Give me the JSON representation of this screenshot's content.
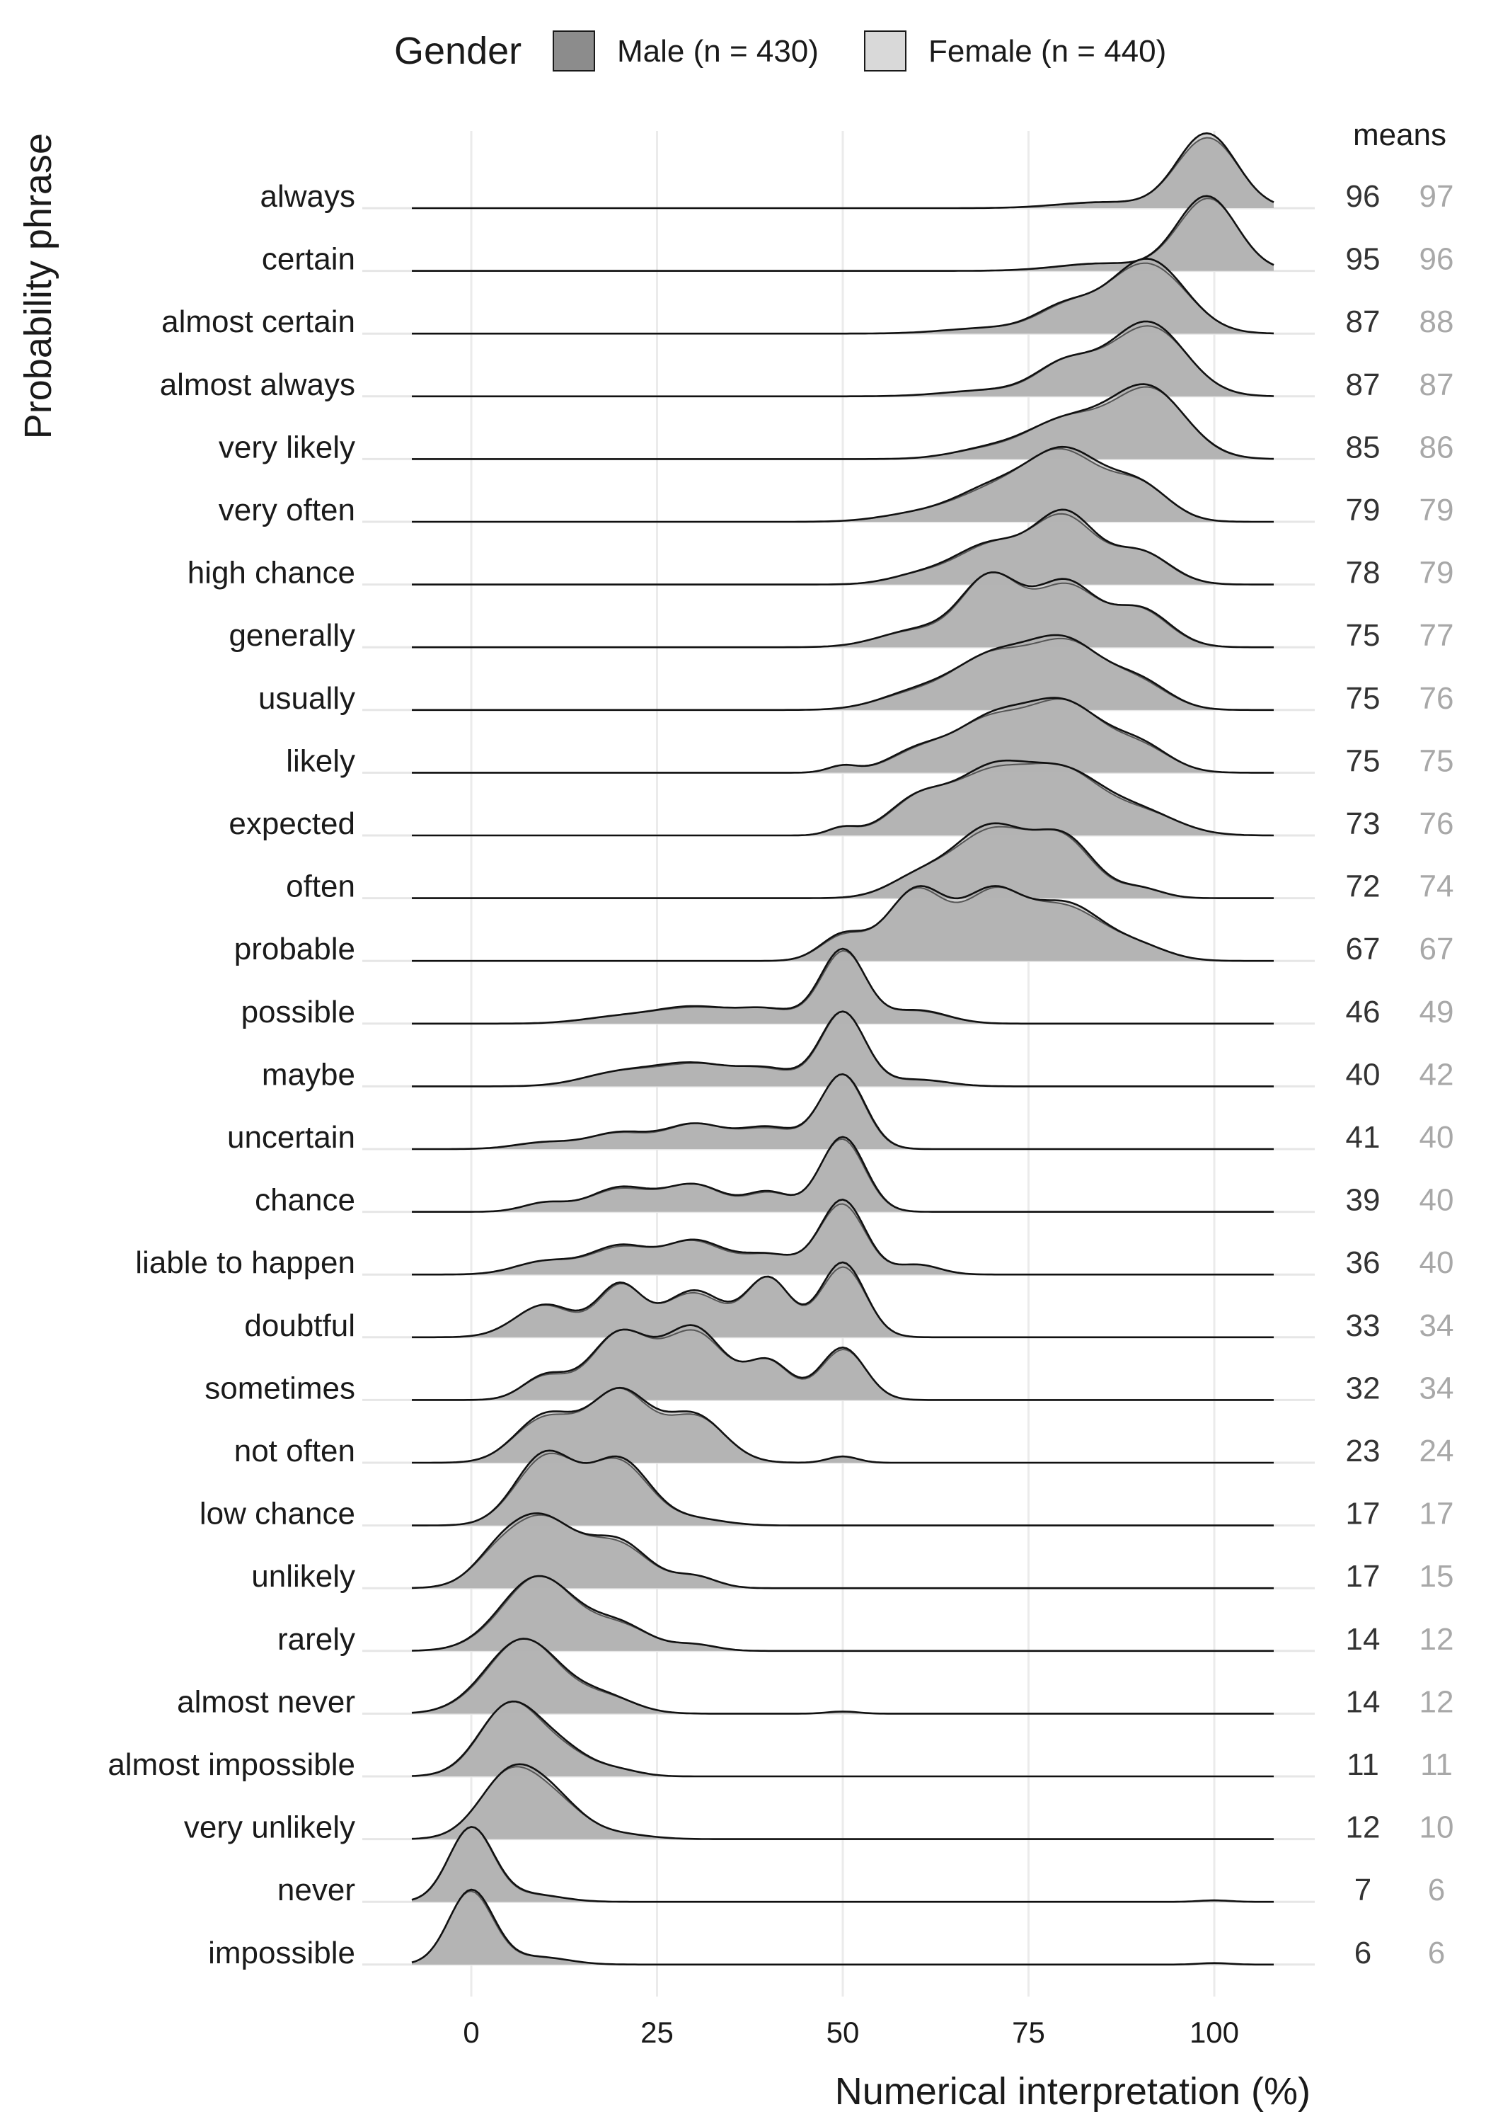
{
  "chart_data": {
    "type": "ridgeline-density",
    "xlabel": "Numerical interpretation (%)",
    "ylabel": "Probability phrase",
    "xlim": [
      -8,
      108
    ],
    "x_ticks": [
      "0",
      "25",
      "50",
      "75",
      "100"
    ],
    "x_tick_values": [
      0,
      25,
      50,
      75,
      100
    ],
    "legend": {
      "title": "Gender",
      "placement": "top",
      "entries": [
        {
          "name": "Male (n = 430)",
          "color": "#8c8c8c"
        },
        {
          "name": "Female (n = 440)",
          "color": "#d9d9d9"
        }
      ]
    },
    "means_header": "means",
    "overlap_fill": "#b3b3b3",
    "phrases": [
      {
        "name": "always",
        "mean_male": "96",
        "mean_female": "97",
        "peaks": [
          [
            99,
            4,
            1.0
          ],
          [
            85,
            6,
            0.08
          ]
        ]
      },
      {
        "name": "certain",
        "mean_male": "95",
        "mean_female": "96",
        "peaks": [
          [
            99,
            4,
            1.0
          ],
          [
            85,
            6,
            0.1
          ]
        ]
      },
      {
        "name": "almost certain",
        "mean_male": "87",
        "mean_female": "88",
        "peaks": [
          [
            91,
            5,
            0.65
          ],
          [
            80,
            4,
            0.22
          ],
          [
            70,
            6,
            0.05
          ]
        ]
      },
      {
        "name": "almost always",
        "mean_male": "87",
        "mean_female": "87",
        "peaks": [
          [
            91,
            5,
            0.6
          ],
          [
            80,
            4,
            0.25
          ],
          [
            70,
            6,
            0.05
          ]
        ]
      },
      {
        "name": "very likely",
        "mean_male": "85",
        "mean_female": "86",
        "peaks": [
          [
            91,
            5,
            0.55
          ],
          [
            80,
            5,
            0.28
          ],
          [
            70,
            5,
            0.08
          ]
        ]
      },
      {
        "name": "very often",
        "mean_male": "79",
        "mean_female": "79",
        "peaks": [
          [
            80,
            5,
            0.45
          ],
          [
            90,
            4,
            0.22
          ],
          [
            70,
            5,
            0.2
          ],
          [
            60,
            5,
            0.05
          ]
        ]
      },
      {
        "name": "high chance",
        "mean_male": "78",
        "mean_female": "79",
        "peaks": [
          [
            80,
            4,
            0.42
          ],
          [
            90,
            4,
            0.2
          ],
          [
            70,
            5,
            0.25
          ],
          [
            60,
            4,
            0.05
          ]
        ]
      },
      {
        "name": "generally",
        "mean_male": "75",
        "mean_female": "77",
        "peaks": [
          [
            70,
            4,
            0.33
          ],
          [
            80,
            4,
            0.3
          ],
          [
            90,
            4,
            0.18
          ],
          [
            60,
            5,
            0.08
          ]
        ]
      },
      {
        "name": "usually",
        "mean_male": "75",
        "mean_female": "76",
        "peaks": [
          [
            80,
            5,
            0.38
          ],
          [
            70,
            5,
            0.28
          ],
          [
            90,
            4,
            0.15
          ],
          [
            60,
            5,
            0.1
          ]
        ]
      },
      {
        "name": "likely",
        "mean_male": "75",
        "mean_female": "75",
        "peaks": [
          [
            80,
            5,
            0.38
          ],
          [
            70,
            5,
            0.3
          ],
          [
            60,
            4,
            0.12
          ],
          [
            90,
            4,
            0.15
          ],
          [
            50,
            2,
            0.04
          ]
        ]
      },
      {
        "name": "expected",
        "mean_male": "73",
        "mean_female": "76",
        "peaks": [
          [
            70,
            5,
            0.33
          ],
          [
            80,
            5,
            0.3
          ],
          [
            60,
            4,
            0.18
          ],
          [
            90,
            5,
            0.12
          ],
          [
            50,
            2,
            0.04
          ]
        ]
      },
      {
        "name": "often",
        "mean_male": "72",
        "mean_female": "74",
        "peaks": [
          [
            70,
            5,
            0.45
          ],
          [
            80,
            4,
            0.35
          ],
          [
            60,
            4,
            0.12
          ],
          [
            90,
            3,
            0.06
          ]
        ]
      },
      {
        "name": "probable",
        "mean_male": "67",
        "mean_female": "67",
        "peaks": [
          [
            60,
            4,
            0.28
          ],
          [
            70,
            4,
            0.25
          ],
          [
            80,
            5,
            0.22
          ],
          [
            50,
            3,
            0.1
          ],
          [
            90,
            4,
            0.05
          ]
        ]
      },
      {
        "name": "possible",
        "mean_male": "46",
        "mean_female": "49",
        "peaks": [
          [
            50,
            3,
            0.55
          ],
          [
            30,
            5,
            0.12
          ],
          [
            40,
            4,
            0.1
          ],
          [
            60,
            4,
            0.1
          ],
          [
            20,
            5,
            0.05
          ]
        ]
      },
      {
        "name": "maybe",
        "mean_male": "40",
        "mean_female": "42",
        "peaks": [
          [
            50,
            3,
            0.55
          ],
          [
            30,
            5,
            0.16
          ],
          [
            40,
            4,
            0.12
          ],
          [
            20,
            5,
            0.1
          ],
          [
            60,
            4,
            0.05
          ]
        ]
      },
      {
        "name": "uncertain",
        "mean_male": "41",
        "mean_female": "40",
        "peaks": [
          [
            50,
            3,
            0.55
          ],
          [
            30,
            4,
            0.18
          ],
          [
            40,
            4,
            0.16
          ],
          [
            20,
            4,
            0.12
          ],
          [
            10,
            4,
            0.05
          ]
        ]
      },
      {
        "name": "chance",
        "mean_male": "39",
        "mean_female": "40",
        "peaks": [
          [
            50,
            3,
            0.5
          ],
          [
            30,
            4,
            0.18
          ],
          [
            20,
            4,
            0.16
          ],
          [
            40,
            3,
            0.13
          ],
          [
            10,
            3,
            0.06
          ]
        ]
      },
      {
        "name": "liable to happen",
        "mean_male": "36",
        "mean_female": "40",
        "peaks": [
          [
            50,
            3,
            0.45
          ],
          [
            30,
            4,
            0.2
          ],
          [
            20,
            4,
            0.17
          ],
          [
            40,
            4,
            0.12
          ],
          [
            10,
            4,
            0.08
          ],
          [
            60,
            3,
            0.06
          ]
        ]
      },
      {
        "name": "doubtful",
        "mean_male": "33",
        "mean_female": "34",
        "peaks": [
          [
            50,
            3,
            0.32
          ],
          [
            40,
            3,
            0.25
          ],
          [
            30,
            4,
            0.2
          ],
          [
            20,
            3,
            0.22
          ],
          [
            10,
            4,
            0.14
          ]
        ]
      },
      {
        "name": "sometimes",
        "mean_male": "32",
        "mean_female": "34",
        "peaks": [
          [
            30,
            4,
            0.3
          ],
          [
            20,
            4,
            0.28
          ],
          [
            40,
            3,
            0.16
          ],
          [
            50,
            3,
            0.22
          ],
          [
            10,
            3,
            0.1
          ]
        ]
      },
      {
        "name": "not often",
        "mean_male": "23",
        "mean_female": "24",
        "peaks": [
          [
            20,
            4,
            0.45
          ],
          [
            10,
            4,
            0.3
          ],
          [
            30,
            4,
            0.3
          ],
          [
            50,
            2,
            0.04
          ]
        ]
      },
      {
        "name": "low chance",
        "mean_male": "17",
        "mean_female": "17",
        "peaks": [
          [
            10,
            4,
            0.55
          ],
          [
            20,
            4,
            0.5
          ],
          [
            30,
            4,
            0.05
          ]
        ]
      },
      {
        "name": "unlikely",
        "mean_male": "17",
        "mean_female": "15",
        "peaks": [
          [
            9,
            5,
            0.5
          ],
          [
            20,
            4,
            0.3
          ],
          [
            30,
            3,
            0.08
          ],
          [
            3,
            3,
            0.08
          ]
        ]
      },
      {
        "name": "rarely",
        "mean_male": "14",
        "mean_female": "12",
        "peaks": [
          [
            9,
            5,
            0.6
          ],
          [
            20,
            4,
            0.2
          ],
          [
            30,
            3,
            0.05
          ]
        ]
      },
      {
        "name": "almost never",
        "mean_male": "14",
        "mean_female": "12",
        "peaks": [
          [
            7,
            5,
            0.7
          ],
          [
            18,
            4,
            0.15
          ],
          [
            50,
            2,
            0.02
          ]
        ]
      },
      {
        "name": "almost impossible",
        "mean_male": "11",
        "mean_female": "11",
        "peaks": [
          [
            5,
            4,
            0.8
          ],
          [
            12,
            4,
            0.3
          ],
          [
            20,
            3,
            0.06
          ]
        ]
      },
      {
        "name": "very unlikely",
        "mean_male": "12",
        "mean_female": "10",
        "peaks": [
          [
            5,
            4,
            0.65
          ],
          [
            11,
            4,
            0.38
          ],
          [
            20,
            4,
            0.05
          ]
        ]
      },
      {
        "name": "never",
        "mean_male": "7",
        "mean_female": "6",
        "peaks": [
          [
            0,
            3,
            1.0
          ],
          [
            8,
            4,
            0.1
          ],
          [
            100,
            2,
            0.02
          ]
        ]
      },
      {
        "name": "impossible",
        "mean_male": "6",
        "mean_female": "6",
        "peaks": [
          [
            0,
            3,
            1.0
          ],
          [
            9,
            4,
            0.1
          ],
          [
            100,
            2,
            0.02
          ]
        ]
      }
    ]
  }
}
